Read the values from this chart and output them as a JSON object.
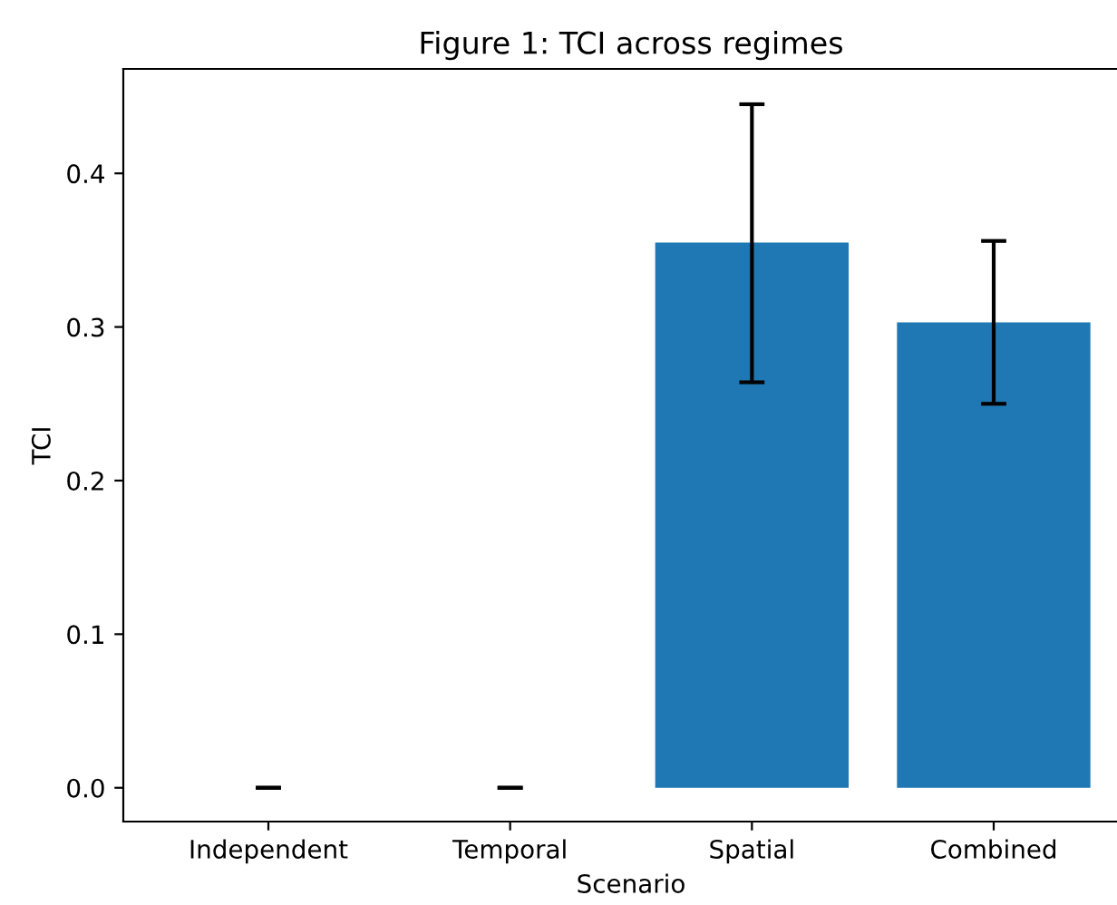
{
  "chart_data": {
    "type": "bar",
    "title": "Figure 1: TCI across regimes",
    "xlabel": "Scenario",
    "ylabel": "TCI",
    "categories": [
      "Independent",
      "Temporal",
      "Spatial",
      "Combined"
    ],
    "values": [
      0,
      0,
      0.355,
      0.303
    ],
    "errors": [
      0,
      0,
      [
        0.264,
        0.445
      ],
      [
        0.25,
        0.356
      ]
    ],
    "color": "#1f77b4",
    "ylim": [
      -0.022,
      0.468
    ],
    "yticks": [
      {
        "value": 0,
        "label": "0.0"
      },
      {
        "value": 0.1,
        "label": "0.1"
      },
      {
        "value": 0.2,
        "label": "0.2"
      },
      {
        "value": 0.3,
        "label": "0.3"
      },
      {
        "value": 0.4,
        "label": "0.4"
      }
    ],
    "grid": false
  }
}
